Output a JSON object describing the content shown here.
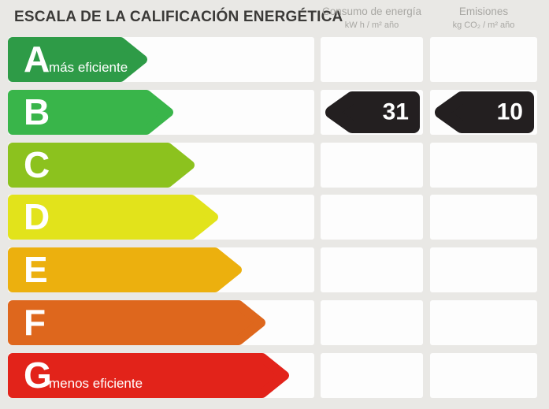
{
  "title": "ESCALA DE LA CALIFICACIÓN ENERGÉTICA",
  "columns": [
    {
      "id": "consumo",
      "label": "Consumo de energía",
      "unit": "kW h / m² año"
    },
    {
      "id": "emisiones",
      "label": "Emisiones",
      "unit": "kg CO₂ / m² año"
    }
  ],
  "rows": [
    {
      "letter": "A",
      "sublabel": "más eficiente",
      "color": "#2e9b47",
      "arrow_width": 177,
      "consumo": "",
      "emisiones": ""
    },
    {
      "letter": "B",
      "sublabel": "",
      "color": "#39b54a",
      "arrow_width": 210,
      "consumo": "31",
      "emisiones": "10"
    },
    {
      "letter": "C",
      "sublabel": "",
      "color": "#8cc21e",
      "arrow_width": 237,
      "consumo": "",
      "emisiones": ""
    },
    {
      "letter": "D",
      "sublabel": "",
      "color": "#e2e31b",
      "arrow_width": 267,
      "consumo": "",
      "emisiones": ""
    },
    {
      "letter": "E",
      "sublabel": "",
      "color": "#ecb00e",
      "arrow_width": 297,
      "consumo": "",
      "emisiones": ""
    },
    {
      "letter": "F",
      "sublabel": "",
      "color": "#de671d",
      "arrow_width": 327,
      "consumo": "",
      "emisiones": ""
    },
    {
      "letter": "G",
      "sublabel": "menos eficiente",
      "color": "#e2231a",
      "arrow_width": 357,
      "consumo": "",
      "emisiones": ""
    }
  ],
  "layout_values": {
    "row_tops": [
      47,
      114,
      181,
      247,
      314,
      381,
      448
    ]
  },
  "colors": {
    "background": "#e9e8e5",
    "cell": "#fdfdfd",
    "title_text": "#3b3a38",
    "header_text": "#a8a7a3",
    "value_arrow": "#231f20",
    "value_text": "#ffffff"
  },
  "chart_data": {
    "type": "bar",
    "title": "ESCALA DE LA CALIFICACIÓN ENERGÉTICA",
    "categories": [
      "A",
      "B",
      "C",
      "D",
      "E",
      "F",
      "G"
    ],
    "category_notes": {
      "A": "más eficiente",
      "G": "menos eficiente"
    },
    "selected_rating": "B",
    "series": [
      {
        "name": "Consumo de energía (kW h / m² año)",
        "values": [
          null,
          31,
          null,
          null,
          null,
          null,
          null
        ]
      },
      {
        "name": "Emisiones (kg CO₂ / m² año)",
        "values": [
          null,
          10,
          null,
          null,
          null,
          null,
          null
        ]
      }
    ],
    "bar_colors": [
      "#2e9b47",
      "#39b54a",
      "#8cc21e",
      "#e2e31b",
      "#ecb00e",
      "#de671d",
      "#e2231a"
    ],
    "legend_position": "top",
    "grid": false
  }
}
